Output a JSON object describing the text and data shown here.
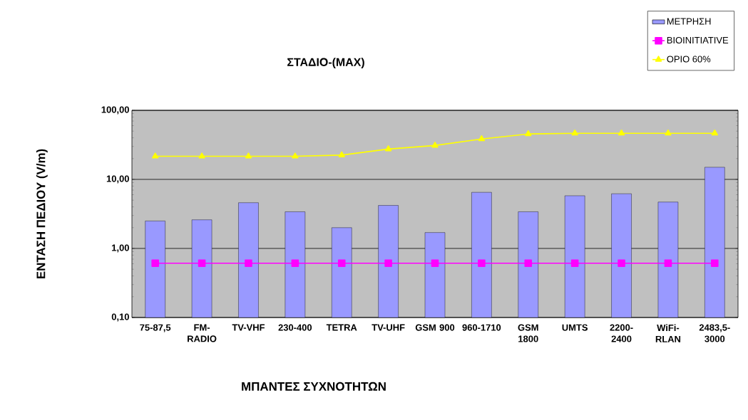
{
  "chart_data": {
    "type": "bar",
    "title": "ΣΤΑΔΙΟ-(MAX)",
    "xlabel": "ΜΠΑΝΤΕΣ ΣΥΧΝΟΤΗΤΩΝ",
    "ylabel": "ΕΝΤΑΣΗ ΠΕΔΙΟΥ (V/m)",
    "categories": [
      "75-87,5",
      "FM-RADIO",
      "TV-VHF",
      "230-400",
      "TETRA",
      "TV-UHF",
      "GSM 900",
      "960-1710",
      "GSM 1800",
      "UMTS",
      "2200-2400",
      "WiFi-RLAN",
      "2483,5-3000"
    ],
    "series": [
      {
        "name": "ΜΕΤΡΗΣΗ",
        "color": "#9999ff",
        "values": [
          2.5,
          2.6,
          4.6,
          3.4,
          2.0,
          4.2,
          1.7,
          6.5,
          3.4,
          5.8,
          6.2,
          4.7,
          15
        ]
      },
      {
        "name": "BIOINITIATIVE",
        "type": "line",
        "color": "#ff00ff",
        "marker": "square",
        "values": [
          0.61,
          0.61,
          0.61,
          0.61,
          0.61,
          0.61,
          0.61,
          0.61,
          0.61,
          0.61,
          0.61,
          0.61,
          0.61
        ]
      },
      {
        "name": "ΟΡΙΟ 60%",
        "type": "line",
        "color": "#ffff00",
        "marker": "triangle",
        "values": [
          21.6,
          21.6,
          21.6,
          21.6,
          22.5,
          27.5,
          31,
          38.5,
          45.5,
          46.5,
          46.5,
          46.5,
          46.5
        ]
      }
    ],
    "log": true,
    "ylim": [
      0.1,
      100
    ],
    "yticks": [
      {
        "value": 0.1,
        "label": "0,10"
      },
      {
        "value": 1,
        "label": "1,00"
      },
      {
        "value": 10,
        "label": "10,00"
      },
      {
        "value": 100,
        "label": "100,00"
      }
    ],
    "grid": "y",
    "legend": "top right"
  }
}
